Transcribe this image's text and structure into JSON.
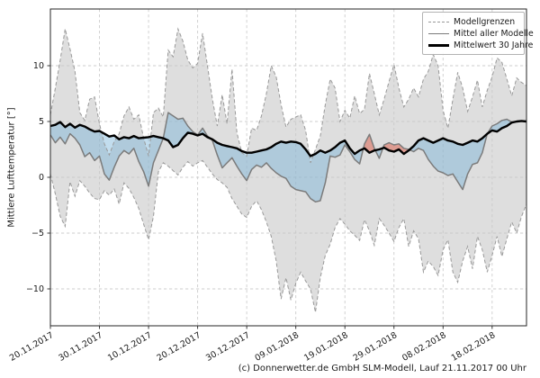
{
  "figure": {
    "caption": "(c) Donnerwetter.de GmbH SLM-Modell, Lauf 21.11.2017 00 Uhr"
  },
  "legend": {
    "items": [
      {
        "label": "Modellgrenzen",
        "style": "dashed-gray"
      },
      {
        "label": "Mittel aller Modelle",
        "style": "solid-gray"
      },
      {
        "label": "Mittelwert 30 Jahre",
        "style": "thick-black"
      }
    ]
  },
  "chart_data": {
    "type": "line",
    "title": "",
    "xlabel": "",
    "ylabel": "Mittlere Lufttemperatur [°]",
    "x_unit": "days since 20.11.2017 (daily values)",
    "xlim_days": [
      0,
      97
    ],
    "ylim": [
      -13.3,
      15.1
    ],
    "grid": true,
    "legend_position": "upper right",
    "x_tick_days": [
      0,
      10,
      20,
      30,
      40,
      50,
      60,
      70,
      80,
      90
    ],
    "x_tick_labels": [
      "20.11.2017",
      "30.11.2017",
      "10.12.2017",
      "20.12.2017",
      "30.12.2017",
      "09.01.2018",
      "19.01.2018",
      "29.01.2018",
      "08.02.2018",
      "18.02.2018"
    ],
    "y_tick_values": [
      -10,
      -5,
      0,
      5,
      10
    ],
    "y_tick_labels": [
      "−10",
      "−5",
      "0",
      "5",
      "10"
    ],
    "series": [
      {
        "name": "Modellgrenzen (oberes Band)",
        "role": "band_max",
        "values": [
          5.6,
          8.0,
          10.5,
          13.3,
          11.5,
          9.5,
          5.8,
          5.1,
          7.0,
          7.2,
          4.8,
          3.0,
          2.0,
          3.2,
          3.9,
          5.5,
          6.3,
          5.2,
          5.6,
          3.5,
          1.9,
          5.8,
          6.2,
          5.4,
          11.4,
          10.8,
          13.3,
          12.2,
          10.5,
          9.8,
          10.2,
          12.9,
          10.0,
          7.0,
          4.6,
          7.4,
          4.8,
          9.7,
          4.0,
          2.2,
          1.9,
          4.4,
          4.2,
          5.5,
          7.5,
          10.0,
          9.0,
          6.5,
          4.5,
          5.2,
          5.4,
          5.6,
          4.2,
          1.3,
          2.5,
          3.7,
          6.5,
          8.8,
          8.0,
          5.0,
          6.0,
          5.3,
          7.3,
          5.7,
          6.1,
          9.3,
          7.5,
          5.6,
          7.0,
          8.6,
          10.1,
          8.0,
          6.3,
          7.0,
          8.0,
          7.2,
          8.8,
          9.5,
          11.0,
          10.0,
          6.0,
          4.4,
          7.0,
          9.4,
          8.0,
          5.9,
          7.2,
          8.7,
          6.3,
          7.8,
          9.0,
          10.7,
          10.3,
          8.8,
          7.3,
          8.9,
          8.5,
          8.2
        ]
      },
      {
        "name": "Modellgrenzen (unteres Band)",
        "role": "band_min",
        "values": [
          0.3,
          -1.5,
          -3.5,
          -4.4,
          -0.4,
          -1.7,
          -0.3,
          -0.8,
          -1.4,
          -1.9,
          -2.0,
          -1.2,
          -1.6,
          -1.05,
          -2.4,
          -0.5,
          -1.0,
          -1.8,
          -2.8,
          -4.2,
          -5.6,
          -3.5,
          0.5,
          1.3,
          1.0,
          0.6,
          0.2,
          0.9,
          1.4,
          1.0,
          1.3,
          1.5,
          0.9,
          0.3,
          -0.2,
          -0.5,
          -0.9,
          -1.9,
          -2.6,
          -3.3,
          -3.6,
          -2.6,
          -2.1,
          -2.9,
          -4.0,
          -5.3,
          -7.5,
          -10.9,
          -9.0,
          -11.0,
          -9.5,
          -8.5,
          -9.3,
          -10.0,
          -12.1,
          -9.0,
          -7.0,
          -6.0,
          -4.5,
          -3.7,
          -4.2,
          -4.8,
          -5.2,
          -5.65,
          -3.8,
          -4.8,
          -6.1,
          -3.7,
          -4.3,
          -5.0,
          -5.75,
          -4.5,
          -3.7,
          -6.2,
          -4.8,
          -5.5,
          -8.5,
          -7.5,
          -8.0,
          -8.8,
          -6.5,
          -5.6,
          -8.5,
          -9.4,
          -7.5,
          -6.2,
          -8.2,
          -5.3,
          -6.5,
          -8.5,
          -7.0,
          -5.3,
          -7.1,
          -5.5,
          -4.0,
          -5.0,
          -3.5,
          -2.4
        ]
      },
      {
        "name": "Mittel aller Modelle",
        "role": "model_mean",
        "values": [
          3.8,
          3.1,
          3.6,
          3.0,
          3.9,
          3.5,
          2.9,
          1.85,
          2.2,
          1.5,
          1.9,
          0.3,
          -0.25,
          0.9,
          1.9,
          2.4,
          2.1,
          2.6,
          1.4,
          0.5,
          -0.8,
          1.3,
          2.4,
          3.5,
          5.8,
          5.5,
          5.2,
          5.3,
          4.6,
          4.1,
          3.8,
          4.4,
          3.7,
          3.3,
          2.0,
          0.85,
          1.3,
          1.75,
          1.0,
          0.3,
          -0.3,
          0.7,
          1.1,
          0.9,
          1.3,
          0.8,
          0.4,
          0.1,
          -0.1,
          -0.8,
          -1.1,
          -1.2,
          -1.3,
          -1.9,
          -2.2,
          -2.1,
          -0.5,
          1.9,
          1.8,
          2.0,
          2.9,
          2.3,
          1.6,
          1.2,
          3.0,
          3.85,
          2.6,
          1.7,
          2.9,
          3.1,
          2.9,
          3.0,
          2.6,
          2.5,
          2.3,
          2.6,
          2.4,
          1.6,
          1.0,
          0.56,
          0.4,
          0.16,
          0.3,
          -0.4,
          -1.1,
          0.3,
          1.15,
          1.3,
          2.2,
          3.9,
          4.6,
          4.8,
          5.1,
          5.2,
          4.95,
          5.0,
          5.05,
          5.0
        ]
      },
      {
        "name": "Mittelwert 30 Jahre",
        "role": "climatology",
        "values": [
          4.6,
          4.7,
          4.95,
          4.5,
          4.8,
          4.45,
          4.7,
          4.55,
          4.3,
          4.1,
          4.15,
          3.9,
          3.65,
          3.75,
          3.4,
          3.6,
          3.5,
          3.7,
          3.5,
          3.55,
          3.6,
          3.7,
          3.6,
          3.5,
          3.3,
          2.7,
          2.9,
          3.5,
          4.0,
          3.9,
          3.75,
          3.9,
          3.6,
          3.4,
          3.1,
          2.9,
          2.8,
          2.7,
          2.6,
          2.35,
          2.2,
          2.2,
          2.3,
          2.4,
          2.5,
          2.7,
          3.0,
          3.2,
          3.1,
          3.2,
          3.15,
          3.0,
          2.5,
          1.9,
          2.1,
          2.4,
          2.2,
          2.4,
          2.7,
          3.1,
          3.3,
          2.6,
          2.1,
          2.4,
          2.6,
          2.2,
          2.4,
          2.5,
          2.65,
          2.4,
          2.3,
          2.5,
          2.1,
          2.4,
          2.8,
          3.3,
          3.5,
          3.3,
          3.1,
          3.3,
          3.5,
          3.3,
          3.2,
          3.0,
          2.9,
          3.1,
          3.3,
          3.2,
          3.5,
          3.9,
          4.2,
          4.1,
          4.4,
          4.6,
          4.9,
          5.0,
          5.05,
          5.0
        ]
      }
    ],
    "fills": {
      "band_fill": "rgba(200,200,200,0.6)",
      "below_normal_fill": "rgba(110,175,215,0.42)",
      "above_normal_fill": "rgba(220,90,70,0.5)"
    },
    "colors": {
      "band_edge": "#999999",
      "model_mean_line": "#7b7b7b",
      "climatology_line": "#000000",
      "grid": "#cdcdcd",
      "spine": "#262626",
      "tick_text": "#1a1a1a"
    }
  }
}
